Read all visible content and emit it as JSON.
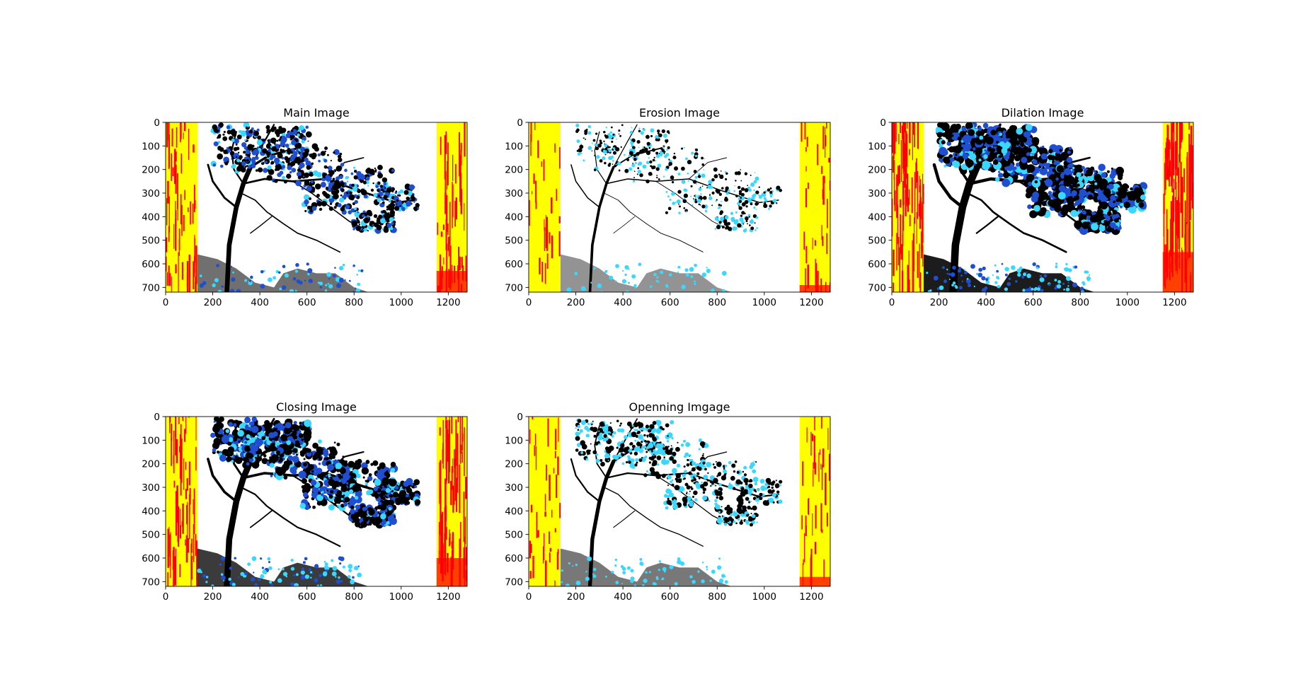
{
  "figure": {
    "background": "#ffffff"
  },
  "chart_data": [
    {
      "type": "image",
      "title": "Main Image",
      "xticks": [
        0,
        200,
        400,
        600,
        800,
        1000,
        1200
      ],
      "yticks": [
        0,
        100,
        200,
        300,
        400,
        500,
        600,
        700
      ],
      "xlim": [
        0,
        1280
      ],
      "ylim": [
        720,
        0
      ],
      "grid": false
    },
    {
      "type": "image",
      "title": "Erosion Image",
      "xticks": [
        0,
        200,
        400,
        600,
        800,
        1000,
        1200
      ],
      "yticks": [
        0,
        100,
        200,
        300,
        400,
        500,
        600,
        700
      ],
      "xlim": [
        0,
        1280
      ],
      "ylim": [
        720,
        0
      ],
      "grid": false
    },
    {
      "type": "image",
      "title": "Dilation Image",
      "xticks": [
        0,
        200,
        400,
        600,
        800,
        1000,
        1200
      ],
      "yticks": [
        0,
        100,
        200,
        300,
        400,
        500,
        600,
        700
      ],
      "xlim": [
        0,
        1280
      ],
      "ylim": [
        720,
        0
      ],
      "grid": false
    },
    {
      "type": "image",
      "title": "Closing Image",
      "xticks": [
        0,
        200,
        400,
        600,
        800,
        1000,
        1200
      ],
      "yticks": [
        0,
        100,
        200,
        300,
        400,
        500,
        600,
        700
      ],
      "xlim": [
        0,
        1280
      ],
      "ylim": [
        720,
        0
      ],
      "grid": false
    },
    {
      "type": "image",
      "title": "Openning Imgage",
      "xticks": [
        0,
        200,
        400,
        600,
        800,
        1000,
        1200
      ],
      "yticks": [
        0,
        100,
        200,
        300,
        400,
        500,
        600,
        700
      ],
      "xlim": [
        0,
        1280
      ],
      "ylim": [
        720,
        0
      ],
      "grid": false
    }
  ],
  "image_colors": {
    "side_band": "#ffff00",
    "streak": "#ff0000",
    "ink": "#000000",
    "blue": "#1f4fd0",
    "cyan": "#3ad7ff",
    "paper": "#ffffff"
  }
}
